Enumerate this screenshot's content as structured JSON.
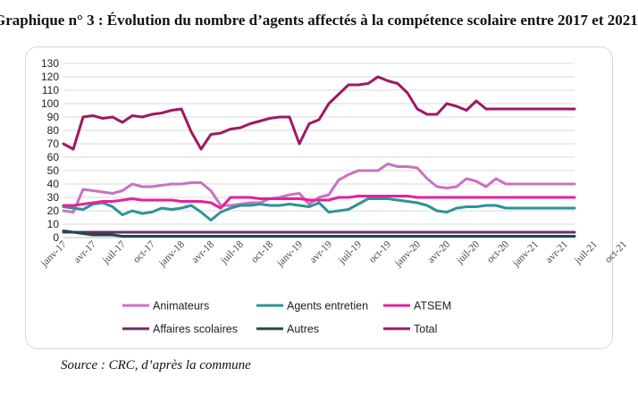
{
  "title": "Graphique n° 3 :  Évolution du nombre d’agents affectés à la compétence scolaire entre 2017 et 2021",
  "source": "Source : CRC, d’après la commune",
  "chart_data": {
    "type": "line",
    "ylim": [
      0,
      130
    ],
    "yticks": [
      0,
      10,
      20,
      30,
      40,
      50,
      60,
      70,
      80,
      90,
      100,
      110,
      120,
      130
    ],
    "grid": true,
    "legend_position": "bottom",
    "x_start": "2017-01",
    "x_end": "2021-12",
    "xtick_labels": [
      "janv-17",
      "avr-17",
      "juil-17",
      "oct-17",
      "janv-18",
      "avr-18",
      "juil-18",
      "oct-18",
      "janv-19",
      "avr-19",
      "juil-19",
      "oct-19",
      "janv-20",
      "avr-20",
      "juil-20",
      "oct-20",
      "janv-21",
      "avr-21",
      "juil-21",
      "oct-21"
    ],
    "series": [
      {
        "name": "Animateurs",
        "color": "#c873c0",
        "values": [
          20,
          19,
          36,
          35,
          34,
          33,
          35,
          40,
          38,
          38,
          39,
          40,
          40,
          41,
          41,
          35,
          24,
          24,
          25,
          26,
          26,
          29,
          30,
          32,
          33,
          25,
          30,
          32,
          43,
          47,
          50,
          50,
          50,
          55,
          53,
          53,
          52,
          44,
          38,
          37,
          38,
          44,
          42,
          38,
          44,
          40,
          40,
          40,
          40,
          40,
          40,
          40,
          40
        ]
      },
      {
        "name": "Agents entretien",
        "color": "#2e9396",
        "values": [
          23,
          22,
          21,
          25,
          26,
          23,
          17,
          20,
          18,
          19,
          22,
          21,
          22,
          24,
          19,
          13,
          19,
          22,
          24,
          24,
          25,
          24,
          24,
          25,
          24,
          23,
          26,
          19,
          20,
          21,
          25,
          29,
          29,
          29,
          28,
          27,
          26,
          24,
          20,
          19,
          22,
          23,
          23,
          24,
          24,
          22,
          22,
          22,
          22,
          22,
          22,
          22,
          22
        ]
      },
      {
        "name": "ATSEM",
        "color": "#e8209a",
        "values": [
          24,
          24,
          25,
          26,
          27,
          27,
          28,
          29,
          28,
          28,
          28,
          28,
          27,
          27,
          27,
          26,
          22,
          30,
          30,
          30,
          29,
          29,
          29,
          29,
          29,
          28,
          28,
          28,
          30,
          30,
          31,
          31,
          31,
          31,
          31,
          31,
          30,
          30,
          30,
          30,
          30,
          30,
          30,
          30,
          30,
          30,
          30,
          30,
          30,
          30,
          30,
          30,
          30
        ]
      },
      {
        "name": "Affaires scolaires",
        "color": "#6a2d6d",
        "values": [
          4,
          4,
          4,
          4,
          4,
          4,
          4,
          4,
          4,
          4,
          4,
          4,
          4,
          4,
          4,
          4,
          4,
          4,
          4,
          4,
          4,
          4,
          4,
          4,
          4,
          4,
          4,
          4,
          4,
          4,
          4,
          4,
          4,
          4,
          4,
          4,
          4,
          4,
          4,
          4,
          4,
          4,
          4,
          4,
          4,
          4,
          4,
          4,
          4,
          4,
          4,
          4,
          4
        ]
      },
      {
        "name": "Autres",
        "color": "#1d4a48",
        "values": [
          5,
          4,
          3,
          2,
          2,
          2,
          1,
          1,
          1,
          1,
          1,
          1,
          1,
          1,
          1,
          1,
          1,
          1,
          1,
          1,
          1,
          1,
          1,
          1,
          1,
          1,
          1,
          1,
          1,
          1,
          1,
          1,
          1,
          1,
          1,
          1,
          1,
          1,
          1,
          1,
          1,
          1,
          1,
          1,
          1,
          1,
          1,
          1,
          1,
          1,
          1,
          1,
          1
        ]
      },
      {
        "name": "Total",
        "color": "#a11764",
        "values": [
          70,
          66,
          90,
          91,
          89,
          90,
          86,
          91,
          90,
          92,
          93,
          95,
          96,
          79,
          66,
          77,
          78,
          81,
          82,
          85,
          87,
          89,
          90,
          90,
          70,
          85,
          88,
          100,
          107,
          114,
          114,
          115,
          120,
          117,
          115,
          108,
          96,
          92,
          92,
          100,
          98,
          95,
          102,
          96,
          96,
          96,
          96,
          96,
          96,
          96,
          96,
          96,
          96
        ]
      }
    ]
  }
}
